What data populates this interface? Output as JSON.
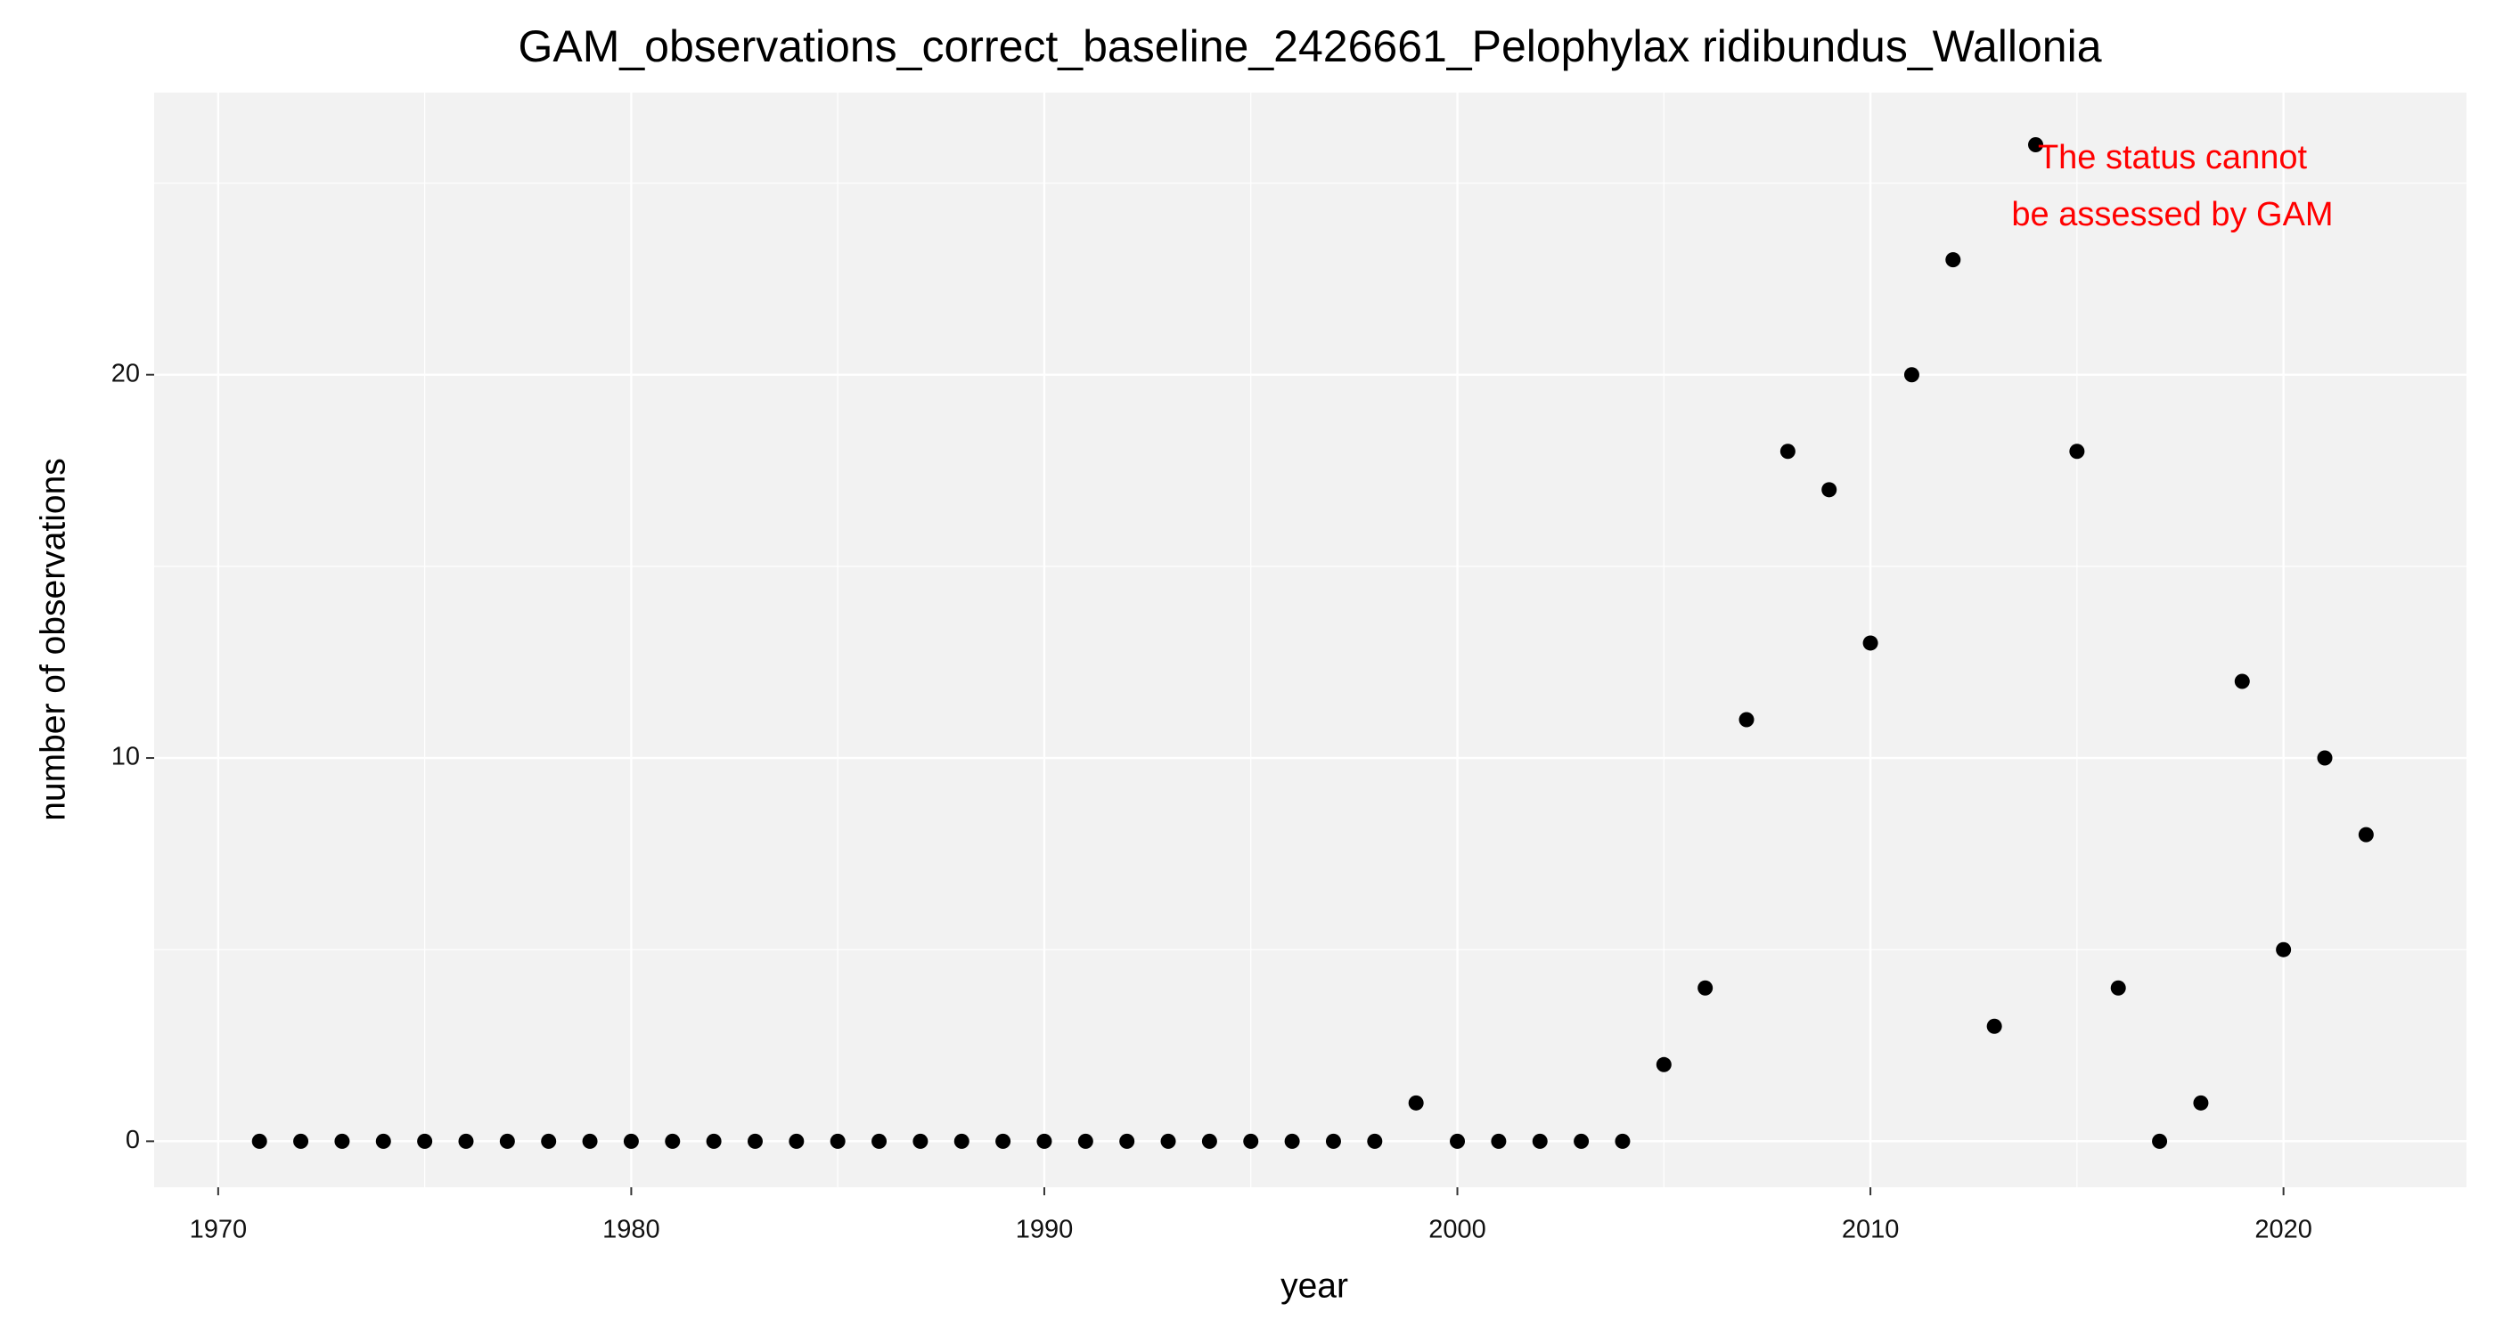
{
  "chart_data": {
    "type": "scatter",
    "title": "GAM_observations_correct_baseline_2426661_Pelophylax ridibundus_Wallonia",
    "x_label": "year",
    "y_label": "number of observations",
    "x": [
      1971,
      1972,
      1973,
      1974,
      1975,
      1976,
      1977,
      1978,
      1979,
      1980,
      1981,
      1982,
      1983,
      1984,
      1985,
      1986,
      1987,
      1988,
      1989,
      1990,
      1991,
      1992,
      1993,
      1994,
      1995,
      1996,
      1997,
      1998,
      1999,
      2000,
      2001,
      2002,
      2003,
      2004,
      2005,
      2006,
      2007,
      2008,
      2009,
      2010,
      2011,
      2012,
      2013,
      2014,
      2015,
      2016,
      2017,
      2018,
      2019,
      2020,
      2021,
      2022
    ],
    "values": [
      0,
      0,
      0,
      0,
      0,
      0,
      0,
      0,
      0,
      0,
      0,
      0,
      0,
      0,
      0,
      0,
      0,
      0,
      0,
      0,
      0,
      0,
      0,
      0,
      0,
      0,
      0,
      0,
      1,
      0,
      0,
      0,
      0,
      0,
      2,
      4,
      11,
      18,
      17,
      13,
      20,
      23,
      3,
      26,
      18,
      4,
      0,
      1,
      12,
      5,
      10,
      8
    ],
    "color": "#000000",
    "xlim": [
      1968.45,
      2024.43
    ],
    "ylim": [
      -1.2,
      27.36
    ],
    "xticks": [
      1970,
      1980,
      1990,
      2000,
      2010,
      2020
    ],
    "yticks": [
      0,
      10,
      20
    ],
    "grid": true,
    "annotation": {
      "text": [
        "The status cannot",
        "be assessed by GAM"
      ],
      "color": "#ff0000"
    }
  }
}
